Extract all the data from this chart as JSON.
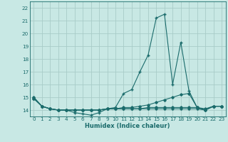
{
  "title": "",
  "xlabel": "Humidex (Indice chaleur)",
  "ylabel": "",
  "xlim": [
    -0.5,
    23.5
  ],
  "ylim": [
    13.5,
    22.5
  ],
  "yticks": [
    14,
    15,
    16,
    17,
    18,
    19,
    20,
    21,
    22
  ],
  "xticks": [
    0,
    1,
    2,
    3,
    4,
    5,
    6,
    7,
    8,
    9,
    10,
    11,
    12,
    13,
    14,
    15,
    16,
    17,
    18,
    19,
    20,
    21,
    22,
    23
  ],
  "bg_color": "#c8e8e4",
  "grid_color": "#a8ccc8",
  "line_color": "#1a6b6b",
  "x": [
    0,
    1,
    2,
    3,
    4,
    5,
    6,
    7,
    8,
    9,
    10,
    11,
    12,
    13,
    14,
    15,
    16,
    17,
    18,
    19,
    20,
    21,
    22,
    23
  ],
  "y_main": [
    15.0,
    14.3,
    14.1,
    14.0,
    14.0,
    13.8,
    13.7,
    13.6,
    13.8,
    14.1,
    14.2,
    15.3,
    15.6,
    17.0,
    18.3,
    21.2,
    21.5,
    16.0,
    19.3,
    15.5,
    14.2,
    14.0,
    14.3,
    14.3
  ],
  "y_line2": [
    15.0,
    14.3,
    14.1,
    14.0,
    14.0,
    14.0,
    14.0,
    14.0,
    14.0,
    14.1,
    14.1,
    14.2,
    14.2,
    14.3,
    14.4,
    14.6,
    14.8,
    15.0,
    15.2,
    15.3,
    14.2,
    14.1,
    14.3,
    14.3
  ],
  "y_line3": [
    14.9,
    14.3,
    14.1,
    14.0,
    14.0,
    14.0,
    14.0,
    14.0,
    14.0,
    14.1,
    14.1,
    14.1,
    14.1,
    14.1,
    14.2,
    14.2,
    14.2,
    14.2,
    14.2,
    14.2,
    14.2,
    14.0,
    14.3,
    14.3
  ],
  "y_line4": [
    14.9,
    14.3,
    14.1,
    14.0,
    14.0,
    14.0,
    14.0,
    14.0,
    14.0,
    14.1,
    14.1,
    14.1,
    14.1,
    14.1,
    14.1,
    14.1,
    14.1,
    14.1,
    14.1,
    14.1,
    14.1,
    14.0,
    14.3,
    14.3
  ],
  "marker_main": "+",
  "marker_other": "D",
  "marker_size_main": 3.5,
  "marker_size_other": 1.8,
  "linewidth": 0.8
}
